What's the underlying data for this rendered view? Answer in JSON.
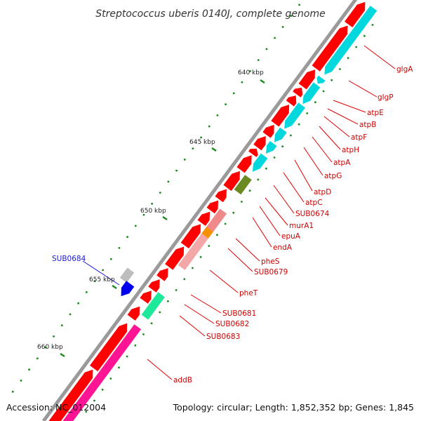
{
  "title": "Streptococcus uberis 0140J, complete genome",
  "accession": "Accession: NC_012004",
  "summary": "Topology: circular; Length: 1,852,352 bp; Genes: 1,845",
  "colors": {
    "forward_cds": "#ff0000",
    "reverse_cds": "#00d8de",
    "backbone": "#9a9a9a",
    "label_line_red": "#e00000",
    "label_line_blue": "#1a1ad6",
    "tick": "#1e8a1e",
    "grey_gene": "#bdbdbd",
    "blue_gene": "#0000ee",
    "olive_gene": "#6b8a22",
    "salmon_gene": "#f08a8a",
    "orange_gene": "#f59000",
    "green_gene": "#1ee89a",
    "pink_gene": "#ff1493"
  },
  "kbp_labels": [
    "640 kbp",
    "645 kbp",
    "650 kbp",
    "655 kbp",
    "660 kbp"
  ],
  "gene_labels": [
    {
      "name": "glgA",
      "color": "red"
    },
    {
      "name": "glgP",
      "color": "red"
    },
    {
      "name": "atpE",
      "color": "red"
    },
    {
      "name": "atpB",
      "color": "red"
    },
    {
      "name": "atpF",
      "color": "red"
    },
    {
      "name": "atpH",
      "color": "red"
    },
    {
      "name": "atpA",
      "color": "red"
    },
    {
      "name": "atpG",
      "color": "red"
    },
    {
      "name": "atpD",
      "color": "red"
    },
    {
      "name": "atpC",
      "color": "red"
    },
    {
      "name": "SUB0674",
      "color": "red"
    },
    {
      "name": "murA1",
      "color": "red"
    },
    {
      "name": "epuA",
      "color": "red"
    },
    {
      "name": "endA",
      "color": "red"
    },
    {
      "name": "pheS",
      "color": "red"
    },
    {
      "name": "SUB0679",
      "color": "red"
    },
    {
      "name": "pheT",
      "color": "red"
    },
    {
      "name": "SUB0681",
      "color": "red"
    },
    {
      "name": "SUB0682",
      "color": "red"
    },
    {
      "name": "SUB0683",
      "color": "red"
    },
    {
      "name": "addB",
      "color": "red"
    },
    {
      "name": "SUB0684",
      "color": "blue"
    }
  ]
}
